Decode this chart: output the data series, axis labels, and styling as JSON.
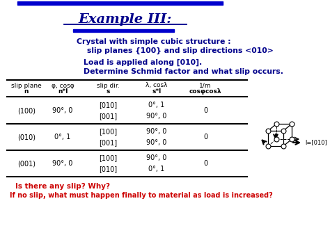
{
  "title": "Example III:",
  "title_color": "#00008B",
  "blue_bar_color": "#0000CD",
  "subtitle_line1": "Crystal with simple cubic structure :",
  "subtitle_line2": "slip planes {100} and slip directions <010>",
  "subtitle_color": "#00008B",
  "load_line1": "Load is applied along [010].",
  "load_line2": "Determine Schmid factor and what slip occurs.",
  "load_color": "#00008B",
  "table_headers_row1": [
    "slip plane",
    "φ, cosφ",
    "slip dir.",
    "λ, cosλ",
    "1/m"
  ],
  "table_headers_row2": [
    "n",
    "n*l",
    "s",
    "s*l",
    "cosφcosλ"
  ],
  "table_data": [
    [
      "(100)",
      "90°, 0",
      "[010]\n[001]",
      "0°, 1\n90°, 0",
      "0"
    ],
    [
      "(010)",
      "0°, 1",
      "[100]\n[001]",
      "90°, 0\n90°, 0",
      "0"
    ],
    [
      "(001)",
      "90°, 0",
      "[100]\n[010]",
      "90°, 0\n0°, 1",
      "0"
    ]
  ],
  "footer_line1": "Is there any slip? Why?",
  "footer_line2": "If no slip, what must happen finally to material as load is increased?",
  "footer_color": "#CC0000",
  "background_color": "#FFFFFF"
}
